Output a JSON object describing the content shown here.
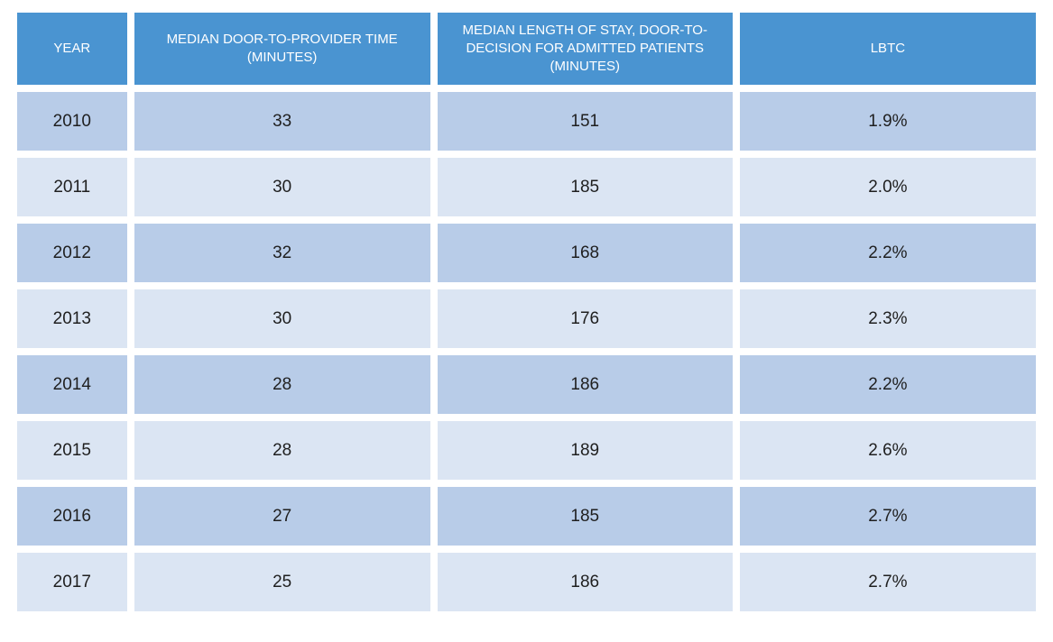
{
  "colors": {
    "header_bg": "#4a94d1",
    "header_text": "#ffffff",
    "row_dark": "#b8cce8",
    "row_light": "#dbe5f3",
    "cell_text": "#1f1f1f",
    "page_bg": "#ffffff"
  },
  "table": {
    "columns": [
      {
        "key": "year",
        "label": "YEAR"
      },
      {
        "key": "median-door-to-provider-time",
        "label": "MEDIAN DOOR-TO-PROVIDER TIME (MINUTES)"
      },
      {
        "key": "median-length-of-stay-door-to-decision",
        "label": "MEDIAN LENGTH OF STAY, DOOR-TO-DECISION FOR ADMITTED PATIENTS (MINUTES)"
      },
      {
        "key": "lbtc",
        "label": "LBTC"
      }
    ],
    "rows": [
      {
        "cells": [
          "2010",
          "33",
          "151",
          "1.9%"
        ]
      },
      {
        "cells": [
          "2011",
          "30",
          "185",
          "2.0%"
        ]
      },
      {
        "cells": [
          "2012",
          "32",
          "168",
          "2.2%"
        ]
      },
      {
        "cells": [
          "2013",
          "30",
          "176",
          "2.3%"
        ]
      },
      {
        "cells": [
          "2014",
          "28",
          "186",
          "2.2%"
        ]
      },
      {
        "cells": [
          "2015",
          "28",
          "189",
          "2.6%"
        ]
      },
      {
        "cells": [
          "2016",
          "27",
          "185",
          "2.7%"
        ]
      },
      {
        "cells": [
          "2017",
          "25",
          "186",
          "2.7%"
        ]
      }
    ]
  },
  "chart_data": {
    "type": "table",
    "categories": [
      2010,
      2011,
      2012,
      2013,
      2014,
      2015,
      2016,
      2017
    ],
    "series": [
      {
        "name": "Median Door-to-Provider Time (minutes)",
        "values": [
          33,
          30,
          32,
          30,
          28,
          28,
          27,
          25
        ]
      },
      {
        "name": "Median Length of Stay, Door-to-Decision for Admitted Patients (minutes)",
        "values": [
          151,
          185,
          168,
          176,
          186,
          189,
          185,
          186
        ]
      },
      {
        "name": "LBTC (%)",
        "values": [
          1.9,
          2.0,
          2.2,
          2.3,
          2.2,
          2.6,
          2.7,
          2.7
        ]
      }
    ]
  }
}
